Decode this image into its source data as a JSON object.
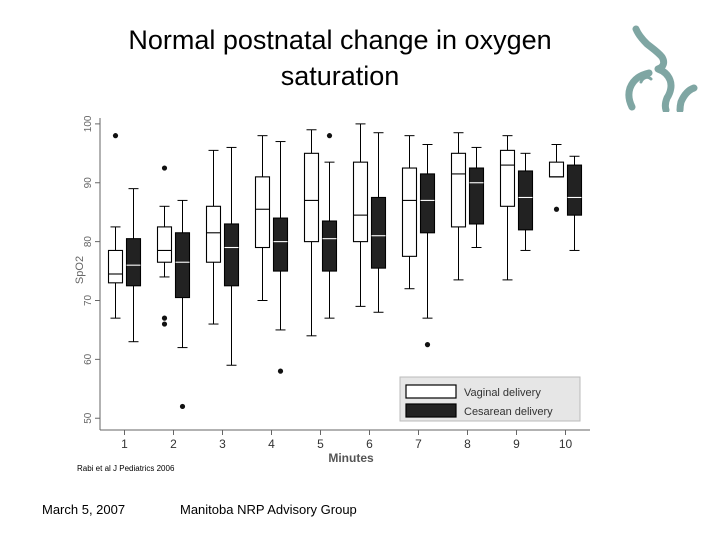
{
  "slide": {
    "title_line1": "Normal postnatal change in oxygen",
    "title_line2": "saturation",
    "citation": "Rabi et al J Pediatrics 2006",
    "footer_date": "March 5, 2007",
    "footer_org": "Manitoba NRP Advisory Group"
  },
  "logo": {
    "icon": "mother-child-profile-icon",
    "color": "#7fa6a3"
  },
  "chart_data": {
    "type": "boxplot",
    "title": "",
    "xlabel": "Minutes",
    "ylabel": "SpO2",
    "categories": [
      "1",
      "2",
      "3",
      "4",
      "5",
      "6",
      "7",
      "8",
      "9",
      "10"
    ],
    "ylim": [
      48,
      101
    ],
    "yticks": [
      50,
      60,
      70,
      80,
      90,
      100
    ],
    "legend": {
      "placement": "bottom-right"
    },
    "series": [
      {
        "name": "Vaginal delivery",
        "fill": "#ffffff",
        "boxes": [
          {
            "min": 67,
            "q1": 73,
            "median": 74.5,
            "q3": 78.5,
            "max": 82.5,
            "outliers": [
              98
            ]
          },
          {
            "min": 74,
            "q1": 76.5,
            "median": 78.5,
            "q3": 82.5,
            "max": 86,
            "outliers": [
              92.5,
              67,
              66
            ]
          },
          {
            "min": 66,
            "q1": 76.5,
            "median": 81.5,
            "q3": 86,
            "max": 95.5,
            "outliers": []
          },
          {
            "min": 70,
            "q1": 79,
            "median": 85.5,
            "q3": 91,
            "max": 98,
            "outliers": []
          },
          {
            "min": 64,
            "q1": 80,
            "median": 87,
            "q3": 95,
            "max": 99,
            "outliers": []
          },
          {
            "min": 69,
            "q1": 80,
            "median": 84.5,
            "q3": 93.5,
            "max": 100,
            "outliers": []
          },
          {
            "min": 72,
            "q1": 77.5,
            "median": 87,
            "q3": 92.5,
            "max": 98,
            "outliers": []
          },
          {
            "min": 73.5,
            "q1": 82.5,
            "median": 91.5,
            "q3": 95,
            "max": 98.5,
            "outliers": []
          },
          {
            "min": 73.5,
            "q1": 86,
            "median": 93,
            "q3": 95.5,
            "max": 98,
            "outliers": []
          },
          {
            "min": 91,
            "q1": 91,
            "median": 91,
            "q3": 93.5,
            "max": 96.5,
            "outliers": [
              85.5
            ]
          }
        ]
      },
      {
        "name": "Cesarean delivery",
        "fill": "#222222",
        "boxes": [
          {
            "min": 63,
            "q1": 72.5,
            "median": 76,
            "q3": 80.5,
            "max": 89,
            "outliers": []
          },
          {
            "min": 62,
            "q1": 70.5,
            "median": 76.5,
            "q3": 81.5,
            "max": 87,
            "outliers": [
              52
            ]
          },
          {
            "min": 59,
            "q1": 72.5,
            "median": 79,
            "q3": 83,
            "max": 96,
            "outliers": []
          },
          {
            "min": 65,
            "q1": 75,
            "median": 80,
            "q3": 84,
            "max": 97,
            "outliers": [
              58
            ]
          },
          {
            "min": 67,
            "q1": 75,
            "median": 80.5,
            "q3": 83.5,
            "max": 93.5,
            "outliers": [
              98
            ]
          },
          {
            "min": 68,
            "q1": 75.5,
            "median": 81,
            "q3": 87.5,
            "max": 98.5,
            "outliers": []
          },
          {
            "min": 67,
            "q1": 81.5,
            "median": 87,
            "q3": 91.5,
            "max": 96.5,
            "outliers": [
              62.5
            ]
          },
          {
            "min": 79,
            "q1": 83,
            "median": 90,
            "q3": 92.5,
            "max": 96,
            "outliers": []
          },
          {
            "min": 78.5,
            "q1": 82,
            "median": 87.5,
            "q3": 92,
            "max": 95,
            "outliers": []
          },
          {
            "min": 78.5,
            "q1": 84.5,
            "median": 87.5,
            "q3": 93,
            "max": 94.5,
            "outliers": []
          }
        ]
      }
    ]
  }
}
